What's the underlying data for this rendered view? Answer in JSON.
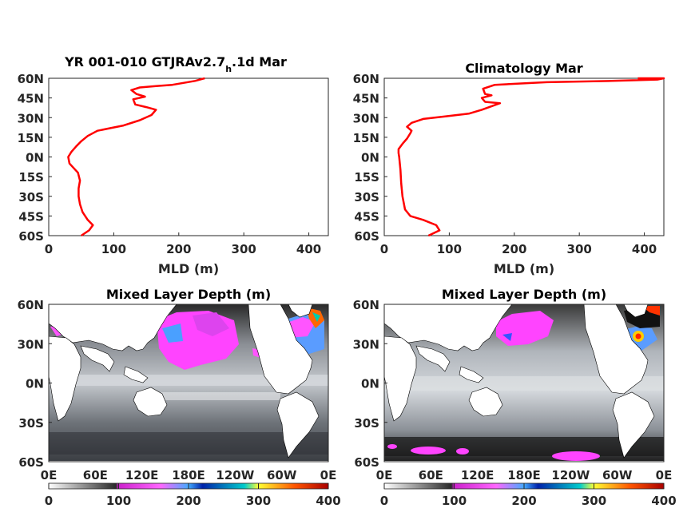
{
  "chart_data": [
    {
      "type": "line",
      "title": "YR 001-010 GTJRAv2.7",
      "title_subscript": "h",
      "title_suffix": ".1d Mar",
      "xlabel": "MLD (m)",
      "ylabel": "",
      "xlim": [
        0,
        430
      ],
      "ylim": [
        -60,
        60
      ],
      "x_ticks": [
        0,
        100,
        200,
        300,
        400
      ],
      "y_ticks": [
        60,
        45,
        30,
        15,
        0,
        -15,
        -30,
        -45,
        -60
      ],
      "y_tick_labels": [
        "60N",
        "45N",
        "30N",
        "15N",
        "0N",
        "15S",
        "30S",
        "45S",
        "60S"
      ],
      "color": "#ff0000",
      "series": [
        {
          "x": [
            50,
            62,
            68,
            60,
            52,
            48,
            46,
            46,
            48,
            45,
            32,
            30,
            35,
            42,
            50,
            60,
            75,
            95,
            115,
            140,
            158,
            165,
            150,
            133,
            130,
            148,
            135,
            127,
            140,
            165,
            190,
            225,
            240
          ],
          "y": [
            -60,
            -56,
            -52,
            -48,
            -42,
            -36,
            -30,
            -24,
            -18,
            -12,
            -5,
            0,
            4,
            8,
            12,
            16,
            20,
            22,
            24,
            28,
            32,
            36,
            38,
            40,
            44,
            46,
            48,
            51,
            53,
            54,
            55,
            58,
            60
          ]
        }
      ]
    },
    {
      "type": "line",
      "title": "Climatology Mar",
      "xlabel": "MLD (m)",
      "ylabel": "",
      "xlim": [
        0,
        430
      ],
      "ylim": [
        -60,
        60
      ],
      "x_ticks": [
        0,
        100,
        200,
        300,
        400
      ],
      "y_ticks": [
        60,
        45,
        30,
        15,
        0,
        -15,
        -30,
        -45,
        -60
      ],
      "y_tick_labels": [
        "60N",
        "45N",
        "30N",
        "15N",
        "0N",
        "15S",
        "30S",
        "45S",
        "60S"
      ],
      "color": "#ff0000",
      "series": [
        {
          "x": [
            68,
            85,
            80,
            60,
            40,
            32,
            28,
            26,
            25,
            24,
            23,
            22,
            22,
            28,
            35,
            40,
            42,
            35,
            42,
            60,
            95,
            130,
            150,
            178,
            155,
            150,
            165,
            155,
            152,
            170,
            250,
            350,
            420,
            430,
            390
          ],
          "y": [
            -60,
            -56,
            -52,
            -48,
            -45,
            -40,
            -30,
            -20,
            -10,
            -5,
            0,
            3,
            6,
            10,
            14,
            18,
            20,
            23,
            26,
            29,
            31,
            33,
            36,
            41,
            42,
            45,
            47,
            48,
            52,
            55,
            57,
            58,
            59,
            60,
            60
          ]
        }
      ]
    },
    {
      "type": "heatmap",
      "title": "Mixed Layer Depth (m)",
      "x_tick_labels": [
        "0E",
        "60E",
        "120E",
        "180E",
        "120W",
        "60W",
        "0E"
      ],
      "y_tick_labels": [
        "60N",
        "30N",
        "0N",
        "30S",
        "60S"
      ],
      "colorbar_ticks": [
        0,
        100,
        200,
        300,
        400
      ],
      "clim": [
        0,
        400
      ],
      "colormap": [
        "#ffffff",
        "#1a1a1a",
        "#ff33ff",
        "#5599ff",
        "#0033cc",
        "#00cc88",
        "#ffff00",
        "#ff6600",
        "#cc0000"
      ],
      "approx_field": "North Atlantic and North Pacific deep MLD (100-400 m), moderate bands 60-100 m in Southern Ocean and subtropics, shallow (<40 m) in tropics"
    },
    {
      "type": "heatmap",
      "title": "Mixed Layer Depth (m)",
      "x_tick_labels": [
        "0E",
        "60E",
        "120E",
        "180E",
        "120W",
        "60W",
        "0E"
      ],
      "y_tick_labels": [
        "60N",
        "30N",
        "0N",
        "30S",
        "60S"
      ],
      "colorbar_ticks": [
        0,
        100,
        200,
        300,
        400
      ],
      "clim": [
        0,
        400
      ],
      "colormap": [
        "#ffffff",
        "#1a1a1a",
        "#ff33ff",
        "#5599ff",
        "#0033cc",
        "#00cc88",
        "#ffff00",
        "#ff6600",
        "#cc0000"
      ],
      "approx_field": "Climatology: deep MLD in North Pacific (magenta) and Labrador Sea (to 400 m), Southern Ocean patches near 100 m, shallow elsewhere"
    }
  ]
}
